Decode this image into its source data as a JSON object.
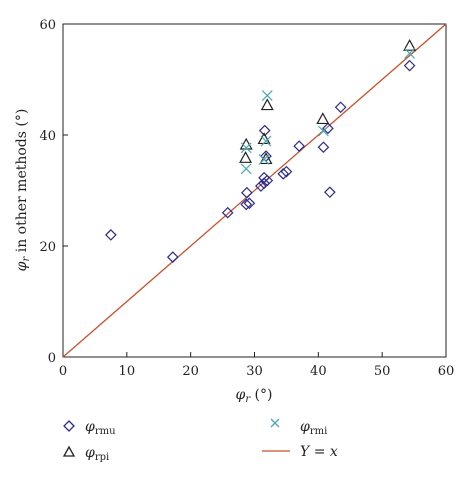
{
  "chart_data": {
    "type": "scatter",
    "title": "",
    "xlabel": {
      "base": "φ",
      "sub": "r",
      "unit": " (°)"
    },
    "ylabel": {
      "base": "φ",
      "sub": "r",
      "rest": " in other methods (°)"
    },
    "xlim": [
      0,
      60
    ],
    "ylim": [
      0,
      60
    ],
    "xticks": [
      "0",
      "10",
      "20",
      "30",
      "40",
      "50",
      "60"
    ],
    "yticks": [
      "0",
      "20",
      "40",
      "60"
    ],
    "grid": false,
    "legend_position": "bottom",
    "series": [
      {
        "key": "rmu",
        "name": {
          "base": "φ",
          "sub": "rmu"
        },
        "marker": "diamond",
        "color": "#2b2b8c",
        "points": [
          [
            7.5,
            22
          ],
          [
            17.2,
            18
          ],
          [
            25.8,
            26
          ],
          [
            28.7,
            27.5
          ],
          [
            29.2,
            27.7
          ],
          [
            28.8,
            29.6
          ],
          [
            31.0,
            30.8
          ],
          [
            31.5,
            31.3
          ],
          [
            31.5,
            32.3
          ],
          [
            32.0,
            31.8
          ],
          [
            31.8,
            36.2
          ],
          [
            31.6,
            40.8
          ],
          [
            34.5,
            33.0
          ],
          [
            35.0,
            33.4
          ],
          [
            37.0,
            38.0
          ],
          [
            40.8,
            37.8
          ],
          [
            41.5,
            41.2
          ],
          [
            43.5,
            45.0
          ],
          [
            41.8,
            29.7
          ],
          [
            54.3,
            52.5
          ]
        ]
      },
      {
        "key": "rpi",
        "name": {
          "base": "φ",
          "sub": "rpi"
        },
        "marker": "triangle",
        "color": "#222222",
        "points": [
          [
            28.6,
            35.8
          ],
          [
            28.7,
            38.2
          ],
          [
            31.5,
            39.2
          ],
          [
            31.8,
            35.6
          ],
          [
            32.0,
            45.3
          ],
          [
            40.7,
            42.8
          ],
          [
            54.3,
            56.0
          ]
        ]
      },
      {
        "key": "rmi",
        "name": {
          "base": "φ",
          "sub": "rmi"
        },
        "marker": "x",
        "color": "#4aa9b0",
        "points": [
          [
            28.7,
            33.9
          ],
          [
            28.7,
            37.7
          ],
          [
            31.5,
            35.6
          ],
          [
            31.8,
            38.9
          ],
          [
            32.0,
            47.1
          ],
          [
            40.8,
            40.7
          ],
          [
            54.3,
            54.7
          ]
        ]
      }
    ],
    "reference_line": {
      "name": "Y = x",
      "color": "#c8502a",
      "from": [
        0,
        0
      ],
      "to": [
        60,
        60
      ]
    }
  }
}
